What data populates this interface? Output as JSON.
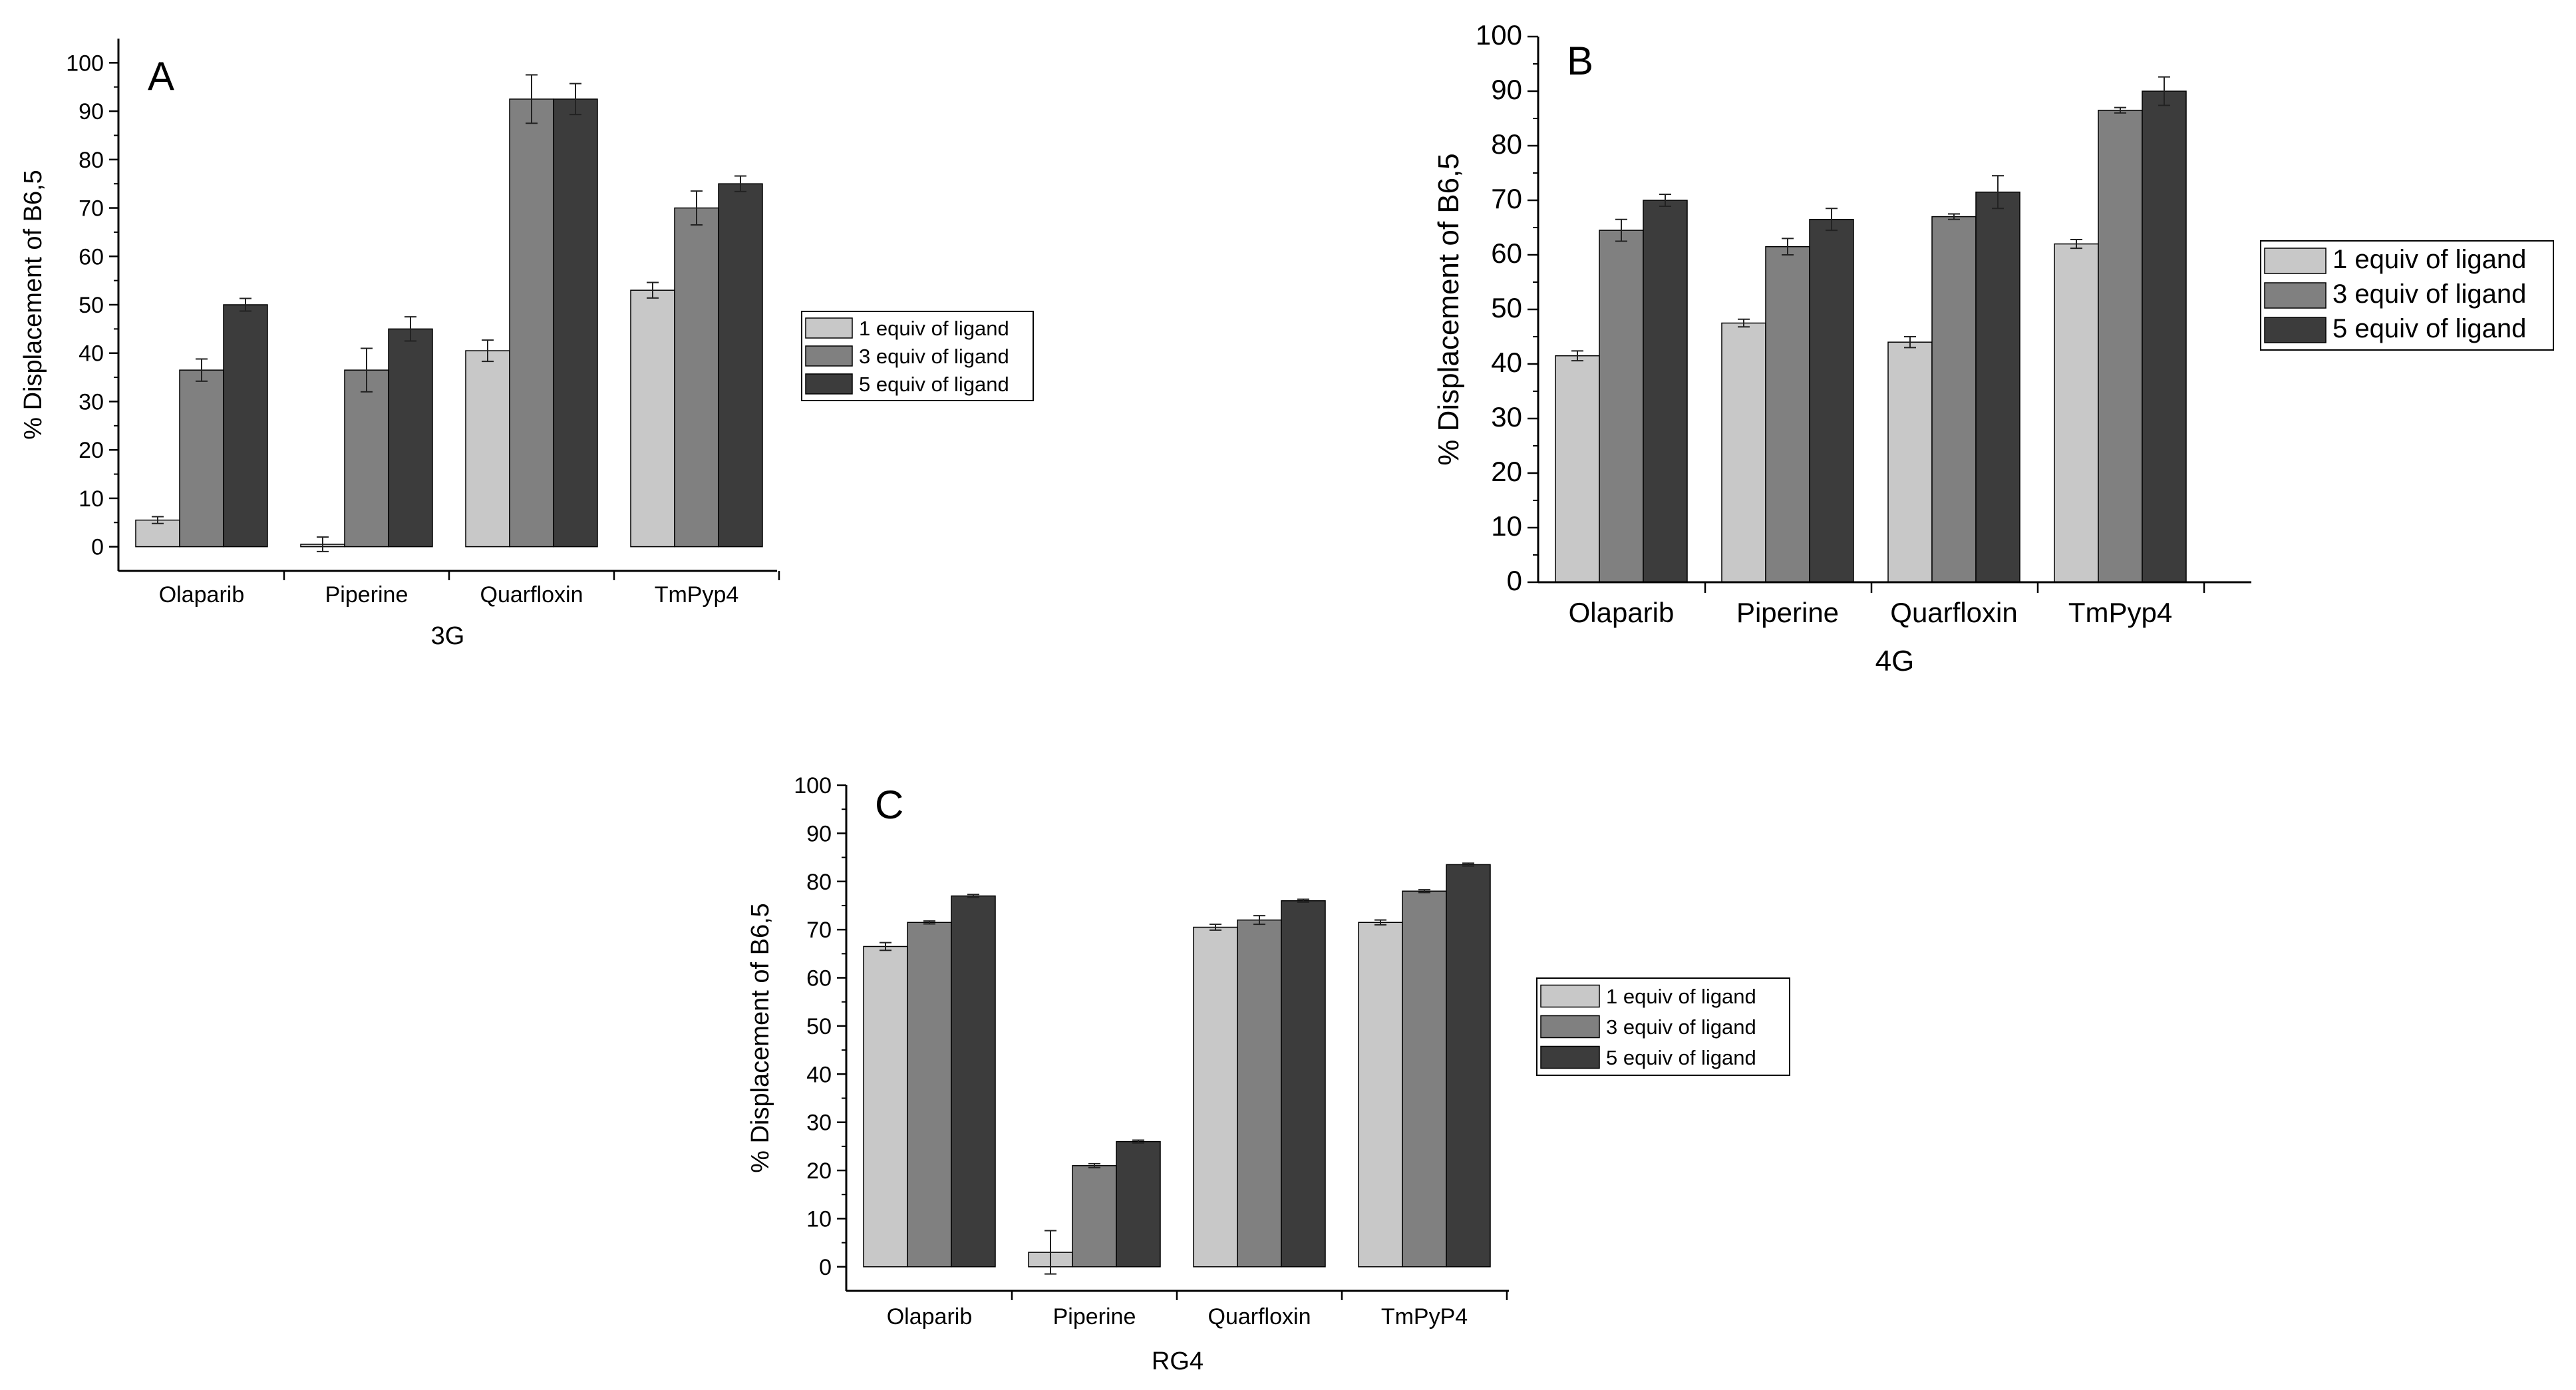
{
  "colors": {
    "equiv1": "#c8c8c8",
    "equiv3": "#808080",
    "equiv5": "#3c3c3c",
    "axis": "#000000"
  },
  "chart_data": [
    {
      "panel": "A",
      "type": "bar",
      "categories": [
        "Olaparib",
        "Piperine",
        "Quarfloxin",
        "TmPyp4"
      ],
      "series": [
        {
          "name": "1 equiv of ligand",
          "values": [
            5.5,
            0.5,
            40.5,
            53
          ],
          "errors": [
            0.7,
            1.5,
            2.2,
            1.6
          ]
        },
        {
          "name": "3 equiv of ligand",
          "values": [
            36.5,
            36.5,
            92.5,
            70
          ],
          "errors": [
            2.3,
            4.5,
            5,
            3.5
          ]
        },
        {
          "name": "5 equiv of ligand",
          "values": [
            50,
            45,
            92.5,
            75
          ],
          "errors": [
            1.3,
            2.5,
            3.2,
            1.6
          ]
        }
      ],
      "xlabel": "3G",
      "ylabel": "% Displacement of B6,5",
      "ylim": [
        -5,
        105
      ],
      "yticks": [
        "0",
        "10",
        "20",
        "30",
        "40",
        "50",
        "60",
        "70",
        "80",
        "90",
        "100"
      ],
      "legend": "right",
      "grid": false
    },
    {
      "panel": "B",
      "type": "bar",
      "categories": [
        "Olaparib",
        "Piperine",
        "Quarfloxin",
        "TmPyp4"
      ],
      "series": [
        {
          "name": "1 equiv of ligand",
          "values": [
            41.5,
            47.5,
            44,
            62
          ],
          "errors": [
            0.9,
            0.7,
            1,
            0.8
          ]
        },
        {
          "name": "3 equiv of ligand",
          "values": [
            64.5,
            61.5,
            67,
            86.5
          ],
          "errors": [
            2,
            1.5,
            0.5,
            0.5
          ]
        },
        {
          "name": "5 equiv of ligand",
          "values": [
            70,
            66.5,
            71.5,
            90
          ],
          "errors": [
            1.1,
            2,
            3,
            2.6
          ]
        }
      ],
      "xlabel": "4G",
      "ylabel": "% Displacement of B6,5",
      "ylim": [
        0,
        100
      ],
      "yticks": [
        "0",
        "10",
        "20",
        "30",
        "40",
        "50",
        "60",
        "70",
        "80",
        "90",
        "100"
      ],
      "legend": "right",
      "grid": false
    },
    {
      "panel": "C",
      "type": "bar",
      "categories": [
        "Olaparib",
        "Piperine",
        "Quarfloxin",
        "TmPyP4"
      ],
      "series": [
        {
          "name": "1 equiv of ligand",
          "values": [
            66.5,
            3,
            70.5,
            71.5
          ],
          "errors": [
            0.8,
            4.5,
            0.6,
            0.5
          ]
        },
        {
          "name": "3 equiv of ligand",
          "values": [
            71.5,
            21,
            72,
            78
          ],
          "errors": [
            0.3,
            0.4,
            0.9,
            0.3
          ]
        },
        {
          "name": "5 equiv of ligand",
          "values": [
            77,
            26,
            76,
            83.5
          ],
          "errors": [
            0.3,
            0.3,
            0.3,
            0.3
          ]
        }
      ],
      "xlabel": "RG4",
      "ylabel": "% Displacement of B6,5",
      "ylim": [
        -5,
        100
      ],
      "yticks": [
        "0",
        "10",
        "20",
        "30",
        "40",
        "50",
        "60",
        "70",
        "80",
        "90",
        "100"
      ],
      "legend": "right",
      "grid": false
    }
  ]
}
